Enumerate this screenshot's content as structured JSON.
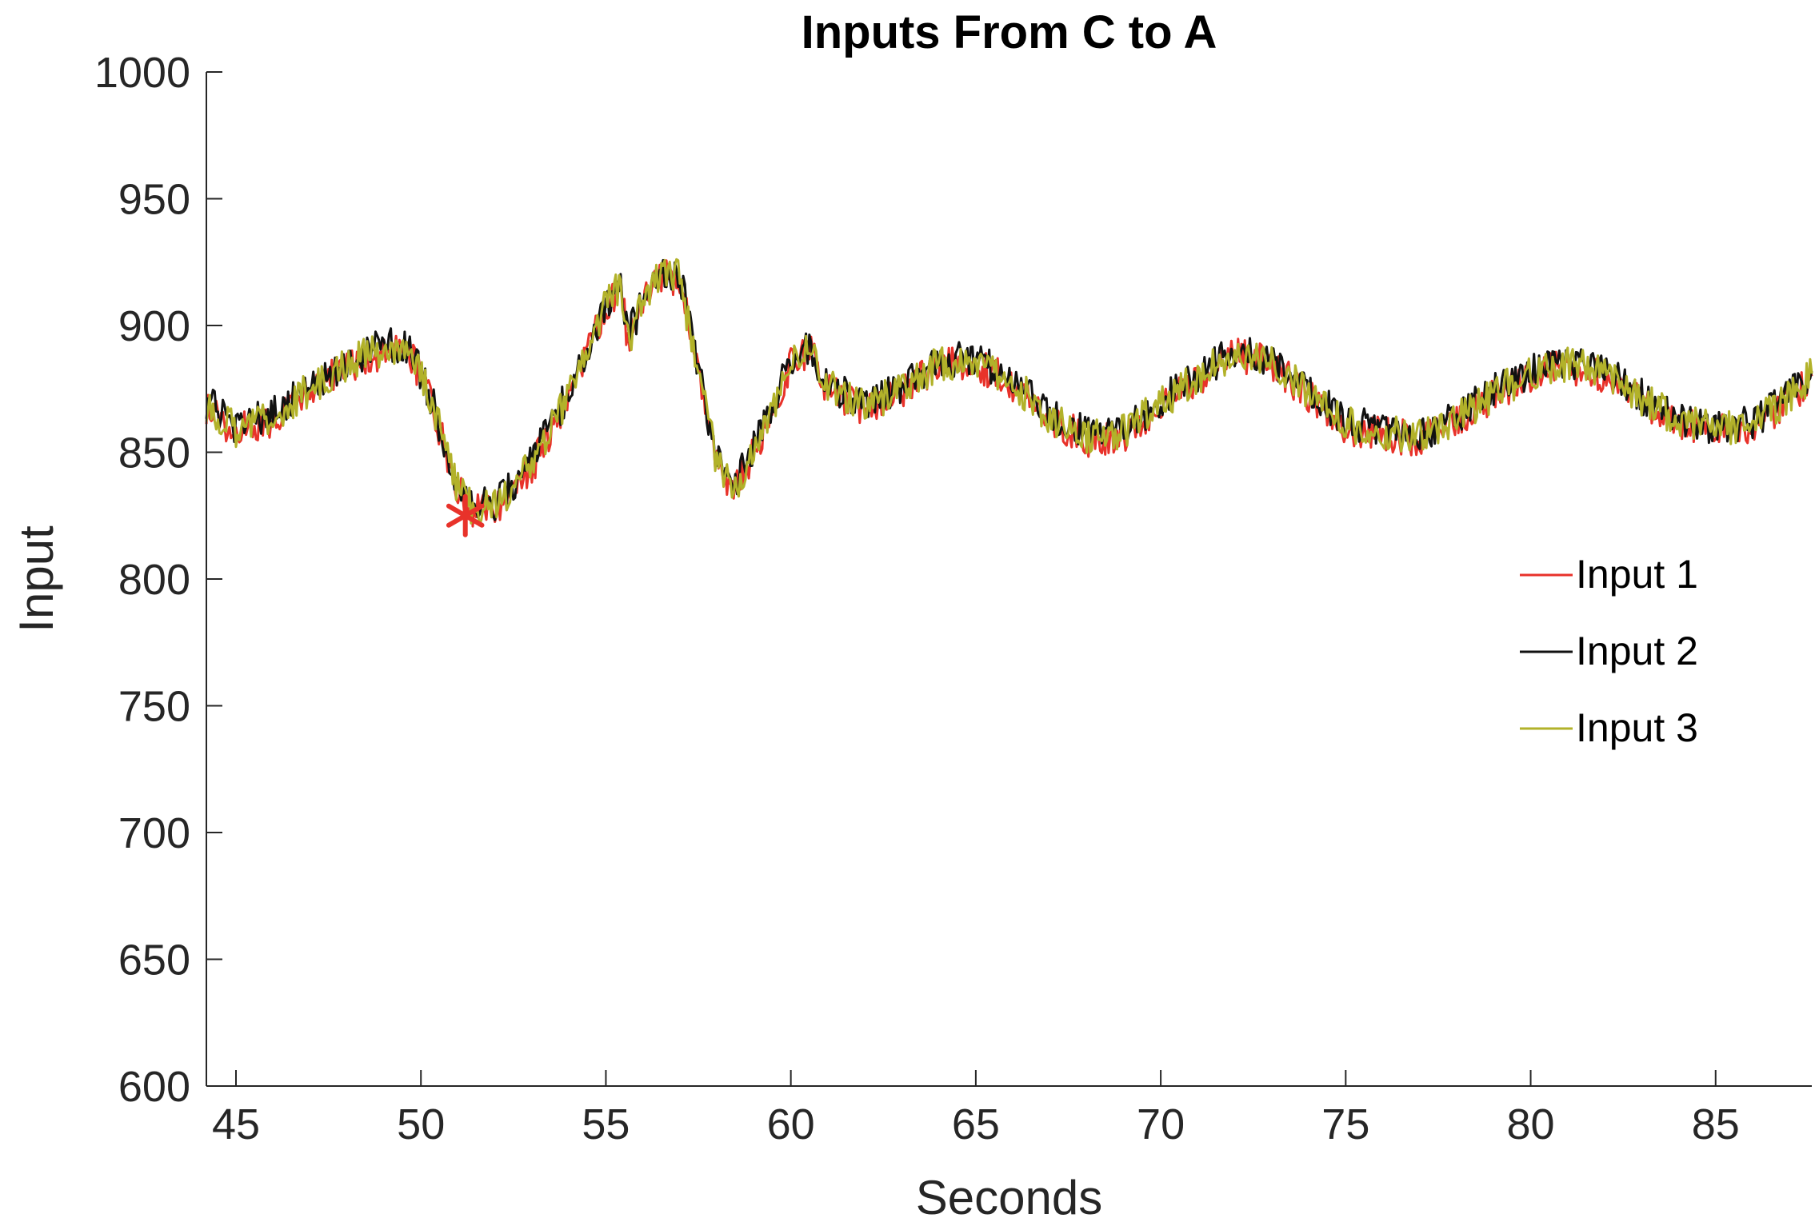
{
  "chart_data": {
    "type": "line",
    "title": "Inputs From C to A",
    "xlabel": "Seconds",
    "ylabel": "Input",
    "xlim": [
      44.2,
      87.6
    ],
    "ylim": [
      600,
      1000
    ],
    "xticks": [
      45,
      50,
      55,
      60,
      65,
      70,
      75,
      80,
      85
    ],
    "yticks": [
      600,
      650,
      700,
      750,
      800,
      850,
      900,
      950,
      1000
    ],
    "grid": false,
    "legend_position": "right",
    "series": [
      {
        "name": "Input 1",
        "color": "#e8322a",
        "x": [
          44.2,
          45,
          46,
          47,
          48,
          49,
          49.7,
          50.3,
          51,
          51.4,
          52,
          53,
          54,
          55,
          55.4,
          55.6,
          56,
          56.5,
          57,
          57.5,
          58,
          58.5,
          59,
          59.5,
          60,
          60.5,
          61,
          62,
          63,
          64,
          65,
          66,
          67,
          68,
          69,
          70,
          71,
          72,
          73,
          74,
          75,
          76,
          77,
          78,
          79,
          80,
          81,
          82,
          83,
          84,
          85,
          86,
          87,
          87.6
        ],
        "y": [
          868,
          858,
          863,
          874,
          884,
          890,
          890,
          868,
          835,
          826,
          828,
          844,
          872,
          907,
          915,
          893,
          908,
          920,
          918,
          880,
          845,
          836,
          850,
          866,
          884,
          890,
          875,
          867,
          874,
          884,
          885,
          877,
          863,
          855,
          857,
          868,
          879,
          888,
          885,
          872,
          860,
          857,
          855,
          862,
          872,
          880,
          884,
          880,
          870,
          862,
          858,
          860,
          871,
          880
        ]
      },
      {
        "name": "Input 2",
        "color": "#111111",
        "x": [
          44.2,
          45,
          46,
          47,
          48,
          49,
          49.7,
          50.3,
          51,
          51.4,
          52,
          53,
          54,
          55,
          55.4,
          55.6,
          56,
          56.5,
          57,
          57.5,
          58,
          58.5,
          59,
          59.5,
          60,
          60.5,
          61,
          62,
          63,
          64,
          65,
          66,
          67,
          68,
          69,
          70,
          71,
          72,
          73,
          74,
          75,
          76,
          77,
          78,
          79,
          80,
          81,
          82,
          83,
          84,
          85,
          86,
          87,
          87.6
        ],
        "y": [
          870,
          860,
          865,
          876,
          886,
          892,
          892,
          870,
          837,
          828,
          830,
          846,
          874,
          909,
          917,
          895,
          910,
          922,
          920,
          882,
          847,
          838,
          852,
          868,
          886,
          892,
          877,
          869,
          876,
          886,
          887,
          879,
          865,
          857,
          859,
          870,
          881,
          890,
          887,
          874,
          862,
          859,
          857,
          864,
          874,
          882,
          886,
          882,
          872,
          864,
          860,
          862,
          873,
          882
        ]
      },
      {
        "name": "Input 3",
        "color": "#b2b22a",
        "x": [
          44.2,
          45,
          46,
          47,
          48,
          49,
          49.7,
          50.3,
          51,
          51.4,
          52,
          53,
          54,
          55,
          55.4,
          55.6,
          56,
          56.5,
          57,
          57.5,
          58,
          58.5,
          59,
          59.5,
          60,
          60.5,
          61,
          62,
          63,
          64,
          65,
          66,
          67,
          68,
          69,
          70,
          71,
          72,
          73,
          74,
          75,
          76,
          77,
          78,
          79,
          80,
          81,
          82,
          83,
          84,
          85,
          86,
          87,
          87.6
        ],
        "y": [
          869,
          859,
          864,
          875,
          885,
          891,
          891,
          869,
          836,
          827,
          829,
          845,
          873,
          908,
          916,
          894,
          909,
          921,
          919,
          881,
          846,
          837,
          851,
          867,
          885,
          891,
          876,
          868,
          875,
          885,
          886,
          878,
          864,
          856,
          858,
          869,
          880,
          889,
          886,
          873,
          861,
          858,
          856,
          863,
          873,
          881,
          885,
          881,
          871,
          863,
          859,
          861,
          872,
          881
        ]
      }
    ],
    "marker": {
      "x": 51.2,
      "y": 825,
      "symbol": "*",
      "color": "#e8322a"
    }
  }
}
